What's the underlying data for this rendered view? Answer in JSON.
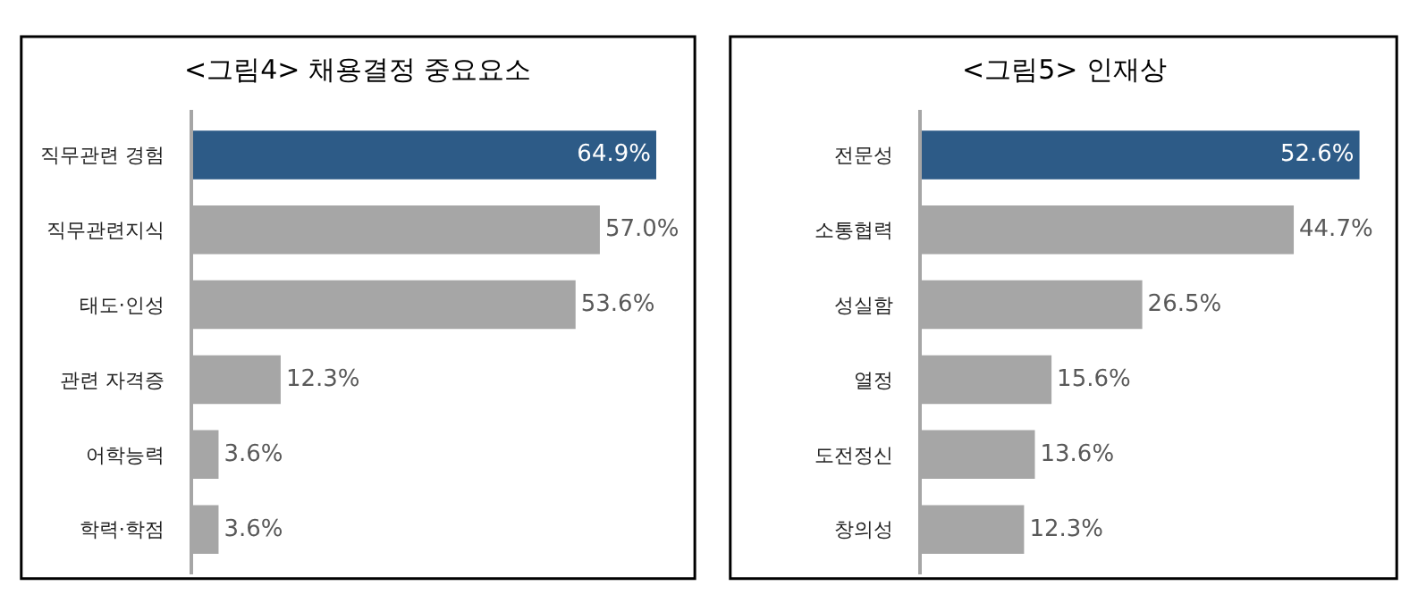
{
  "chart_data": [
    {
      "type": "bar",
      "orientation": "horizontal",
      "title": "<그림4> 채용결정 중요요소",
      "categories": [
        "직무관련 경험",
        "직무관련지식",
        "태도·인성",
        "관련 자격증",
        "어학능력",
        "학력·학점"
      ],
      "values": [
        64.9,
        57.0,
        53.6,
        12.3,
        3.6,
        3.6
      ],
      "colors": [
        "#2d5b87",
        "#a6a6a6",
        "#a6a6a6",
        "#a6a6a6",
        "#a6a6a6",
        "#a6a6a6"
      ],
      "value_labels": [
        "64.9%",
        "57.0%",
        "53.6%",
        "12.3%",
        "3.6%",
        "3.6%"
      ],
      "tick_labels": "y"
    },
    {
      "type": "bar",
      "orientation": "horizontal",
      "title": "<그림5> 인재상",
      "categories": [
        "전문성",
        "소통협력",
        "성실함",
        "열정",
        "도전정신",
        "창의성"
      ],
      "values": [
        52.6,
        44.7,
        26.5,
        15.6,
        13.6,
        12.3
      ],
      "colors": [
        "#2d5b87",
        "#a6a6a6",
        "#a6a6a6",
        "#a6a6a6",
        "#a6a6a6",
        "#a6a6a6"
      ],
      "value_labels": [
        "52.6%",
        "44.7%",
        "26.5%",
        "15.6%",
        "13.6%",
        "12.3%"
      ],
      "tick_labels": "y"
    }
  ]
}
